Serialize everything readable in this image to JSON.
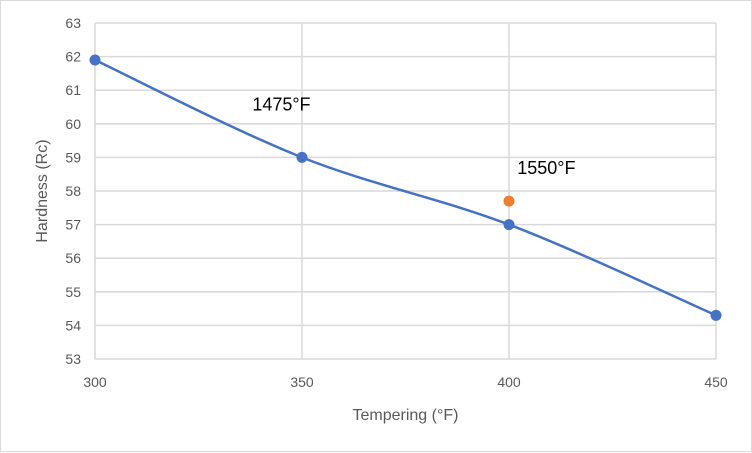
{
  "chart_data": {
    "type": "scatter",
    "title": "",
    "xlabel": "Tempering (°F)",
    "ylabel": "Hardness (Rc)",
    "xlim": [
      300,
      450
    ],
    "ylim": [
      53,
      63
    ],
    "xticks": [
      300,
      350,
      400,
      450
    ],
    "yticks": [
      53,
      54,
      55,
      56,
      57,
      58,
      59,
      60,
      61,
      62,
      63
    ],
    "grid": true,
    "series": [
      {
        "name": "1475°F",
        "color": "#4472C4",
        "smooth_line": true,
        "x": [
          300,
          350,
          400,
          450
        ],
        "y": [
          61.9,
          59.0,
          57.0,
          54.3
        ]
      },
      {
        "name": "1550°F",
        "color": "#ED7D31",
        "smooth_line": false,
        "x": [
          400
        ],
        "y": [
          57.7
        ]
      }
    ],
    "annotations": [
      {
        "text": "1475°F",
        "x": 338,
        "y": 60.4
      },
      {
        "text": "1550°F",
        "x": 402,
        "y": 58.5
      }
    ]
  }
}
